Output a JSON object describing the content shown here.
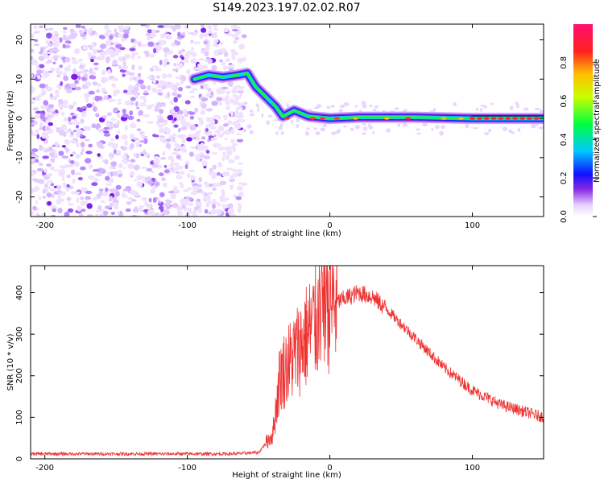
{
  "title": "S149.2023.197.02.02.R07",
  "chart_data": [
    {
      "type": "heatmap",
      "xlabel": "Height of straight line (km)",
      "ylabel": "Frequency (Hz)",
      "xlim": [
        -210,
        150
      ],
      "ylim": [
        -25,
        24
      ],
      "xticks": [
        -200,
        -100,
        0,
        100
      ],
      "yticks": [
        -20,
        -10,
        0,
        10,
        20
      ],
      "colorbar": {
        "label": "Normalized spectral amplitude",
        "range": [
          0.0,
          1.0
        ],
        "ticks": [
          0.0,
          0.2,
          0.4,
          0.6,
          0.8
        ]
      },
      "signal_track": [
        {
          "x": -95,
          "y": 10
        },
        {
          "x": -85,
          "y": 11
        },
        {
          "x": -75,
          "y": 10.5
        },
        {
          "x": -65,
          "y": 11
        },
        {
          "x": -58,
          "y": 11.5
        },
        {
          "x": -52,
          "y": 8
        },
        {
          "x": -45,
          "y": 5.5
        },
        {
          "x": -38,
          "y": 3
        },
        {
          "x": -33,
          "y": 0.5
        },
        {
          "x": -25,
          "y": 2
        },
        {
          "x": -15,
          "y": 0.5
        },
        {
          "x": 0,
          "y": 0
        },
        {
          "x": 20,
          "y": 0.3
        },
        {
          "x": 60,
          "y": 0.3
        },
        {
          "x": 100,
          "y": 0
        },
        {
          "x": 150,
          "y": 0
        }
      ],
      "noise_region_x": [
        -210,
        -60
      ]
    },
    {
      "type": "line",
      "xlabel": "Height of straight line (km)",
      "ylabel": "SNR (10 * v/v)",
      "xlim": [
        -210,
        150
      ],
      "ylim": [
        0,
        465
      ],
      "xticks": [
        -200,
        -100,
        0,
        100
      ],
      "yticks": [
        0,
        100,
        200,
        300,
        400
      ],
      "color": "#ee3333",
      "envelope": [
        {
          "x": -210,
          "y": 12
        },
        {
          "x": -70,
          "y": 12
        },
        {
          "x": -50,
          "y": 15
        },
        {
          "x": -40,
          "y": 60
        },
        {
          "x": -35,
          "y": 200
        },
        {
          "x": -25,
          "y": 250
        },
        {
          "x": -10,
          "y": 330
        },
        {
          "x": 0,
          "y": 370
        },
        {
          "x": 10,
          "y": 385
        },
        {
          "x": 20,
          "y": 400
        },
        {
          "x": 30,
          "y": 390
        },
        {
          "x": 40,
          "y": 360
        },
        {
          "x": 60,
          "y": 290
        },
        {
          "x": 80,
          "y": 220
        },
        {
          "x": 100,
          "y": 165
        },
        {
          "x": 120,
          "y": 130
        },
        {
          "x": 150,
          "y": 100
        }
      ]
    }
  ]
}
